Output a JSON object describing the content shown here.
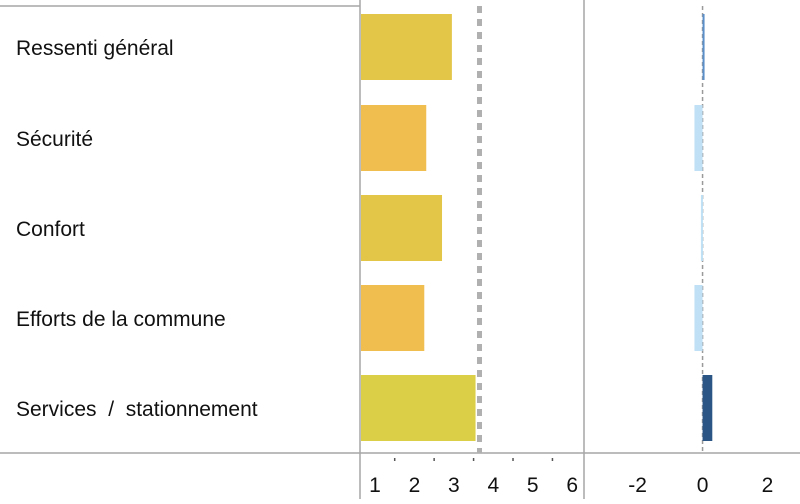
{
  "chart_data": [
    {
      "type": "bar",
      "orientation": "horizontal",
      "categories": [
        "Ressenti général",
        "Sécurité",
        "Confort",
        "Efforts de la commune",
        "Services  /  stationnement"
      ],
      "values": [
        2.95,
        2.3,
        2.7,
        2.25,
        3.55
      ],
      "xlim": [
        0.62,
        6.3
      ],
      "xticks": [
        "1",
        "2",
        "3",
        "4",
        "5",
        "6"
      ],
      "reference_line": 3.65,
      "bar_colors": [
        "#e3c548",
        "#f0bd4f",
        "#e3c548",
        "#f0bd4f",
        "#dccf48"
      ]
    },
    {
      "type": "bar",
      "orientation": "horizontal",
      "categories": [
        "Ressenti général",
        "Sécurité",
        "Confort",
        "Efforts de la commune",
        "Services  /  stationnement"
      ],
      "values": [
        0.05,
        -0.25,
        -0.05,
        -0.25,
        0.3
      ],
      "xlim": [
        -3.65,
        3
      ],
      "xticks": [
        "-2",
        "0",
        "2"
      ],
      "reference_line": 0,
      "bar_colors": [
        "#5b8fc9",
        "#bfe0f5",
        "#bfe0f5",
        "#bfe0f5",
        "#2b5585"
      ]
    }
  ]
}
